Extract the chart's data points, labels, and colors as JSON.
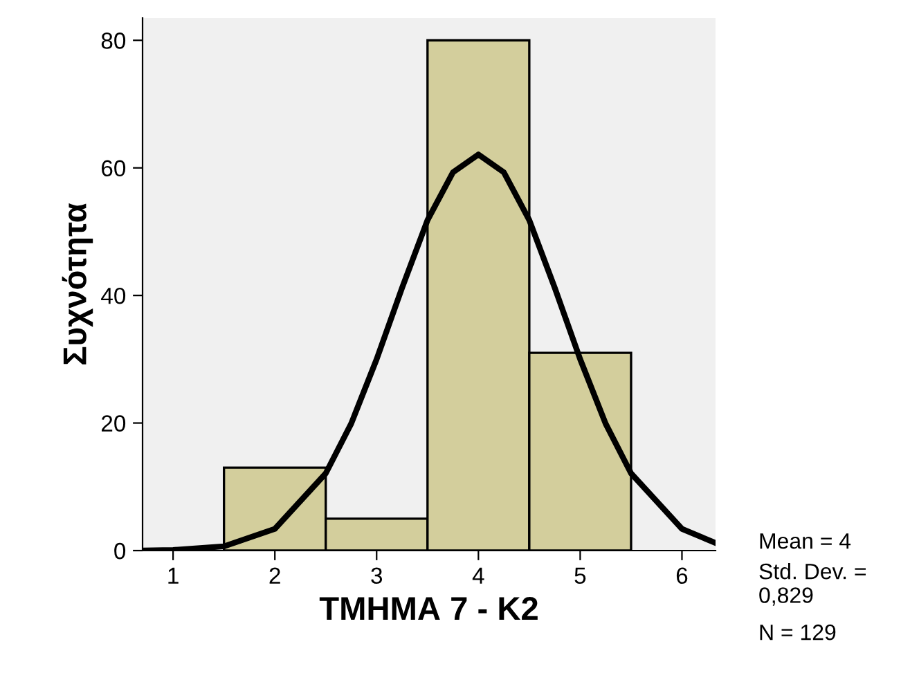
{
  "chart_data": {
    "type": "histogram",
    "xlabel": "ΤΜΗΜΑ 7 - Κ2",
    "ylabel": "Συχνότητα",
    "bins": [
      1.5,
      2.5,
      3.5,
      4.5,
      5.5
    ],
    "values": [
      13,
      5,
      80,
      31
    ],
    "color": "#d3ce9c",
    "series": [
      {
        "type": "line",
        "color": "#000000",
        "x": [
          0.7,
          1.0,
          1.5,
          2.0,
          2.5,
          2.75,
          3.0,
          3.25,
          3.5,
          3.75,
          4.0,
          4.25,
          4.5,
          4.75,
          5.0,
          5.25,
          5.5,
          6.0,
          6.33
        ],
        "values": [
          0.02,
          0.09,
          0.66,
          3.4,
          12.1,
          19.9,
          30.0,
          41.2,
          51.8,
          59.3,
          62.1,
          59.3,
          51.8,
          41.2,
          30.0,
          19.9,
          12.1,
          3.4,
          1.2
        ]
      }
    ],
    "xlim": [
      0.7,
      6.33
    ],
    "ylim": [
      0,
      83.5
    ],
    "xticks": [
      1,
      2,
      3,
      4,
      5,
      6
    ],
    "yticks": [
      0,
      20,
      40,
      60,
      80
    ],
    "grid": false,
    "legend": false,
    "annotations": [
      "Mean = 4",
      "Std. Dev. =\n0,829",
      "N = 129"
    ]
  }
}
